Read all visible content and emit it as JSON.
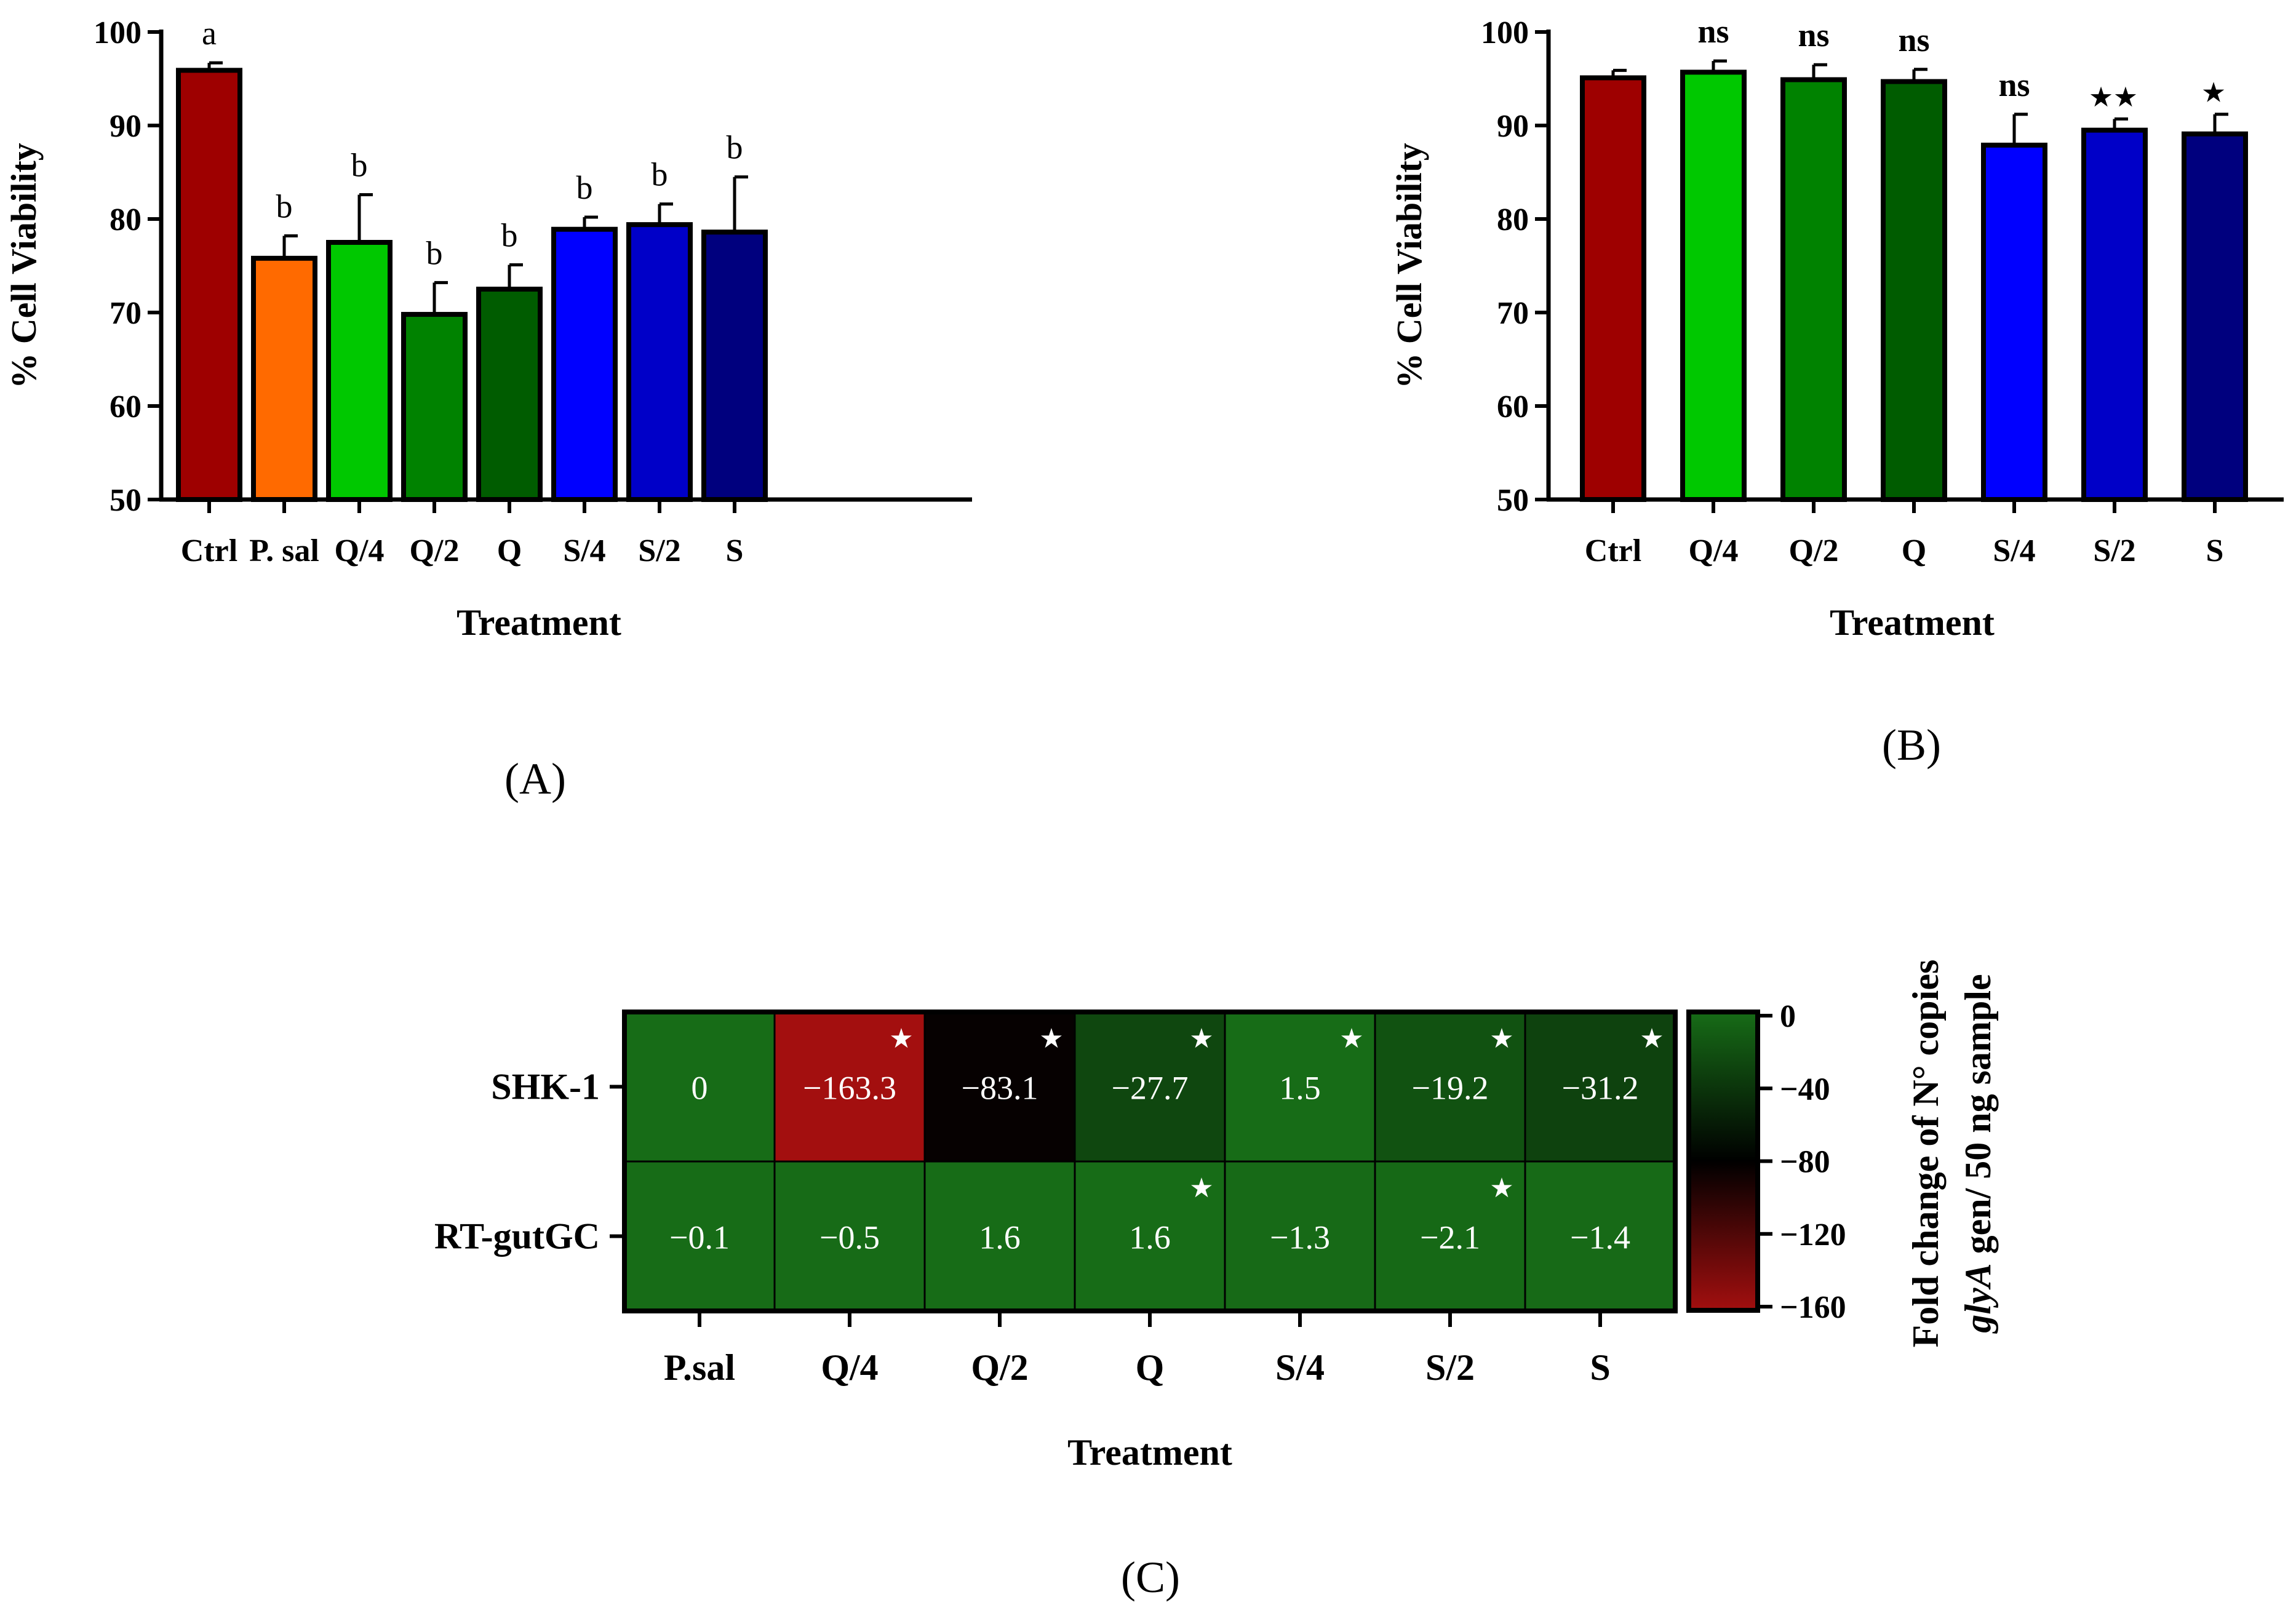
{
  "chart_data": [
    {
      "panel": "A",
      "type": "bar",
      "title": "",
      "xlabel": "Treatment",
      "ylabel": "% Cell Viability",
      "ylim": [
        50,
        100
      ],
      "yticks": [
        "50",
        "60",
        "70",
        "80",
        "90",
        "100"
      ],
      "categories": [
        "Ctrl",
        "P. sal",
        "Q/4",
        "Q/2",
        "Q",
        "S/4",
        "S/2",
        "S"
      ],
      "values": [
        95.9,
        75.8,
        77.5,
        69.8,
        72.5,
        78.9,
        79.4,
        78.6
      ],
      "errors": [
        0.8,
        2.4,
        5.1,
        3.4,
        2.6,
        1.3,
        2.2,
        5.9
      ],
      "colors": [
        "#9e0000",
        "#ff6a00",
        "#00c800",
        "#008200",
        "#005c00",
        "#0000ff",
        "#0000c8",
        "#00007e"
      ],
      "annotations": [
        "a",
        "b",
        "b",
        "b",
        "b",
        "b",
        "b",
        "b"
      ],
      "panel_label": "(A)"
    },
    {
      "panel": "B",
      "type": "bar",
      "title": "",
      "xlabel": "Treatment",
      "ylabel": "% Cell Viability",
      "ylim": [
        50,
        100
      ],
      "yticks": [
        "50",
        "60",
        "70",
        "80",
        "90",
        "100"
      ],
      "categories": [
        "Ctrl",
        "Q/4",
        "Q/2",
        "Q",
        "S/4",
        "S/2",
        "S"
      ],
      "values": [
        95.1,
        95.7,
        94.9,
        94.7,
        87.9,
        89.5,
        89.1
      ],
      "errors": [
        0.8,
        1.2,
        1.6,
        1.3,
        3.3,
        1.2,
        2.1
      ],
      "colors": [
        "#9e0000",
        "#00c800",
        "#008200",
        "#005c00",
        "#0000ff",
        "#0000c8",
        "#00007e"
      ],
      "annotations": [
        "",
        "ns",
        "ns",
        "ns",
        "ns",
        "★★",
        "★"
      ],
      "panel_label": "(B)"
    },
    {
      "panel": "C",
      "type": "heatmap",
      "xlabel": "Treatment",
      "columns": [
        "P.sal",
        "Q/4",
        "Q/2",
        "Q",
        "S/4",
        "S/2",
        "S"
      ],
      "rows": [
        "SHK-1",
        "RT-gutGC"
      ],
      "values": [
        [
          0,
          -163.3,
          -83.1,
          -27.7,
          1.5,
          -19.2,
          -31.2
        ],
        [
          -0.1,
          -0.5,
          1.6,
          1.6,
          -1.3,
          -2.1,
          -1.4
        ]
      ],
      "labels": [
        [
          "0",
          "−163.3",
          "−83.1",
          "−27.7",
          "1.5",
          "−19.2",
          "−31.2"
        ],
        [
          "−0.1",
          "−0.5",
          "1.6",
          "1.6",
          "−1.3",
          "−2.1",
          "−1.4"
        ]
      ],
      "significance": [
        [
          false,
          true,
          true,
          true,
          true,
          true,
          true
        ],
        [
          false,
          false,
          false,
          true,
          false,
          true,
          false
        ]
      ],
      "star_symbol": "★",
      "colorbar": {
        "range": [
          -160,
          0
        ],
        "ticks": [
          "0",
          "−40",
          "−80",
          "−120",
          "−160"
        ],
        "tick_values": [
          0,
          -40,
          -80,
          -120,
          -160
        ],
        "label_line1": "Fold change of N° copies",
        "label_line2_italic": "glyA",
        "label_line2_rest": " gen/ 50 ng sample",
        "colors": {
          "high": "#176c17",
          "mid": "#000000",
          "low": "#a30f0f"
        }
      },
      "panel_label": "(C)"
    }
  ]
}
